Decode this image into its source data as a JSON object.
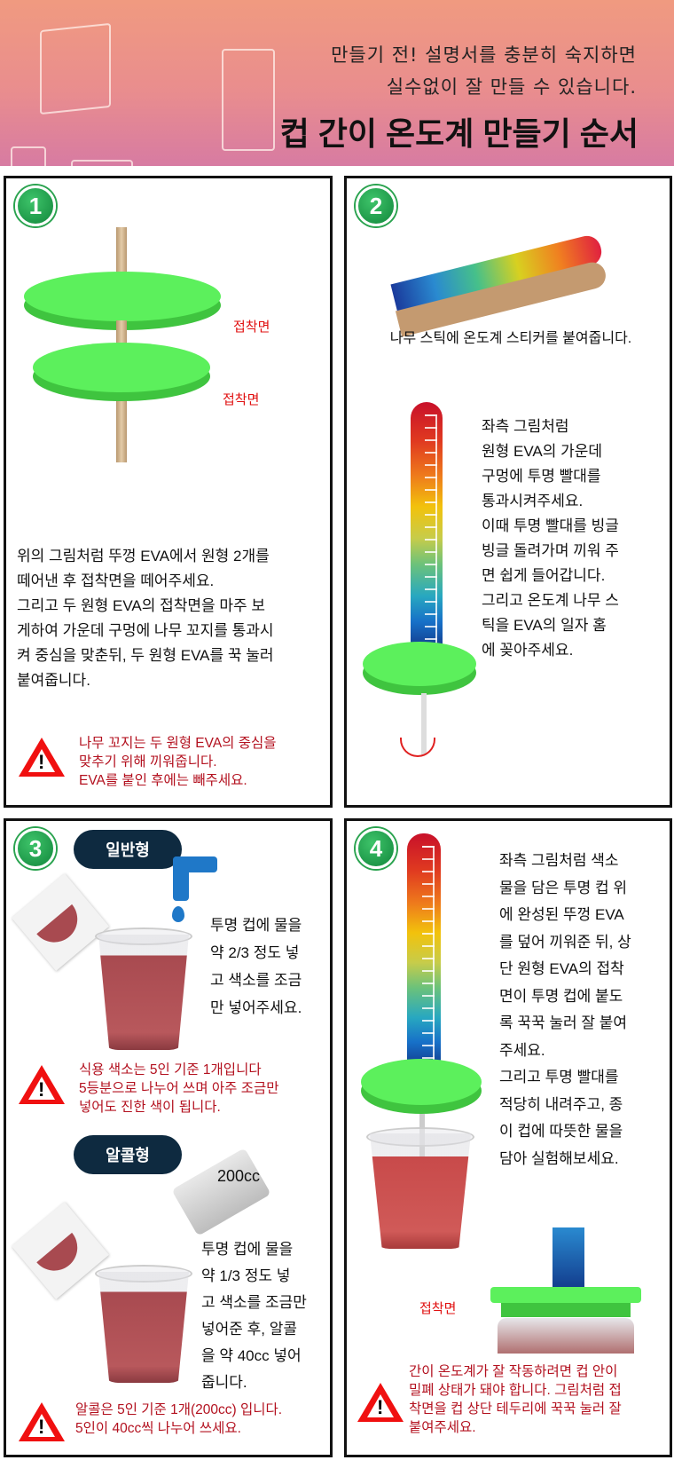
{
  "header": {
    "subtitle_line1": "만들기 전! 설명서를 충분히 숙지하면",
    "subtitle_line2": "실수없이 잘 만들 수 있습니다.",
    "title": "컵 간이 온도계 만들기 순서"
  },
  "steps": [
    {
      "number": "1",
      "labels": [
        "접착면",
        "접착면"
      ],
      "body": "위의 그림처럼 뚜껑 EVA에서 원형 2개를\n떼어낸 후 접착면을 떼어주세요.\n그리고 두 원형  EVA의 접착면을 마주 보\n게하여 가운데 구멍에 나무 꼬지를 통과시\n켜 중심을 맞춘뒤, 두 원형  EVA를 꾹 눌러\n붙여줍니다.",
      "warning": "나무 꼬지는 두 원형 EVA의 중심을\n맞추기 위해 끼워줍니다.\nEVA를 붙인 후에는 빼주세요."
    },
    {
      "number": "2",
      "caption": "나무 스틱에 온도계 스티커를 붙여줍니다.",
      "body": "좌측 그림처럼\n원형 EVA의 가운데\n구멍에 투명 빨대를\n통과시켜주세요.\n이때 투명 빨대를 빙글\n빙글 돌려가며 끼워 주\n면 쉽게 들어갑니다.\n그리고 온도계 나무 스\n틱을 EVA의 일자 홈\n에 꽂아주세요."
    },
    {
      "number": "3",
      "type1_label": "일반형",
      "type1_body": "투명 컵에 물을\n약 2/3 정도 넣\n고 색소를 조금\n만 넣어주세요.",
      "type1_warning": "식용 색소는 5인 기준 1개입니다\n5등분으로 나누어 쓰며 아주 조금만\n넣어도 진한 색이 됩니다.",
      "type2_label": "알콜형",
      "bottle_label": "200cc",
      "type2_body": "투명 컵에 물을\n약 1/3 정도 넣\n고 색소를 조금만\n넣어준 후, 알콜\n을 약 40cc 넣어\n줍니다.",
      "type2_warning": "알콜은 5인 기준 1개(200cc) 입니다.\n5인이 40cc씩 나누어 쓰세요."
    },
    {
      "number": "4",
      "label": "접착면",
      "body": "좌측 그림처럼 색소\n물을 담은 투명 컵 위\n에 완성된 뚜껑 EVA\n를 덮어 끼워준 뒤, 상\n단 원형 EVA의 접착\n면이 투명 컵에 붙도\n록 꾹꾹 눌러 잘 붙여\n주세요.\n그리고 투명 빨대를\n적당히 내려주고, 종\n이 컵에 따뜻한 물을\n담아 실험해보세요.",
      "warning": "간이 온도계가 잘 작동하려면 컵 안이\n밀폐 상태가 돼야 합니다. 그림처럼 접\n착면을 컵 상단 테두리에 꾹꾹 눌러 잘\n붙여주세요."
    }
  ],
  "warning_icon_glyph": "!",
  "colors": {
    "accent_green": "#5cf05c",
    "warning_red": "#b3111f",
    "pill_navy": "#0e2a40"
  }
}
